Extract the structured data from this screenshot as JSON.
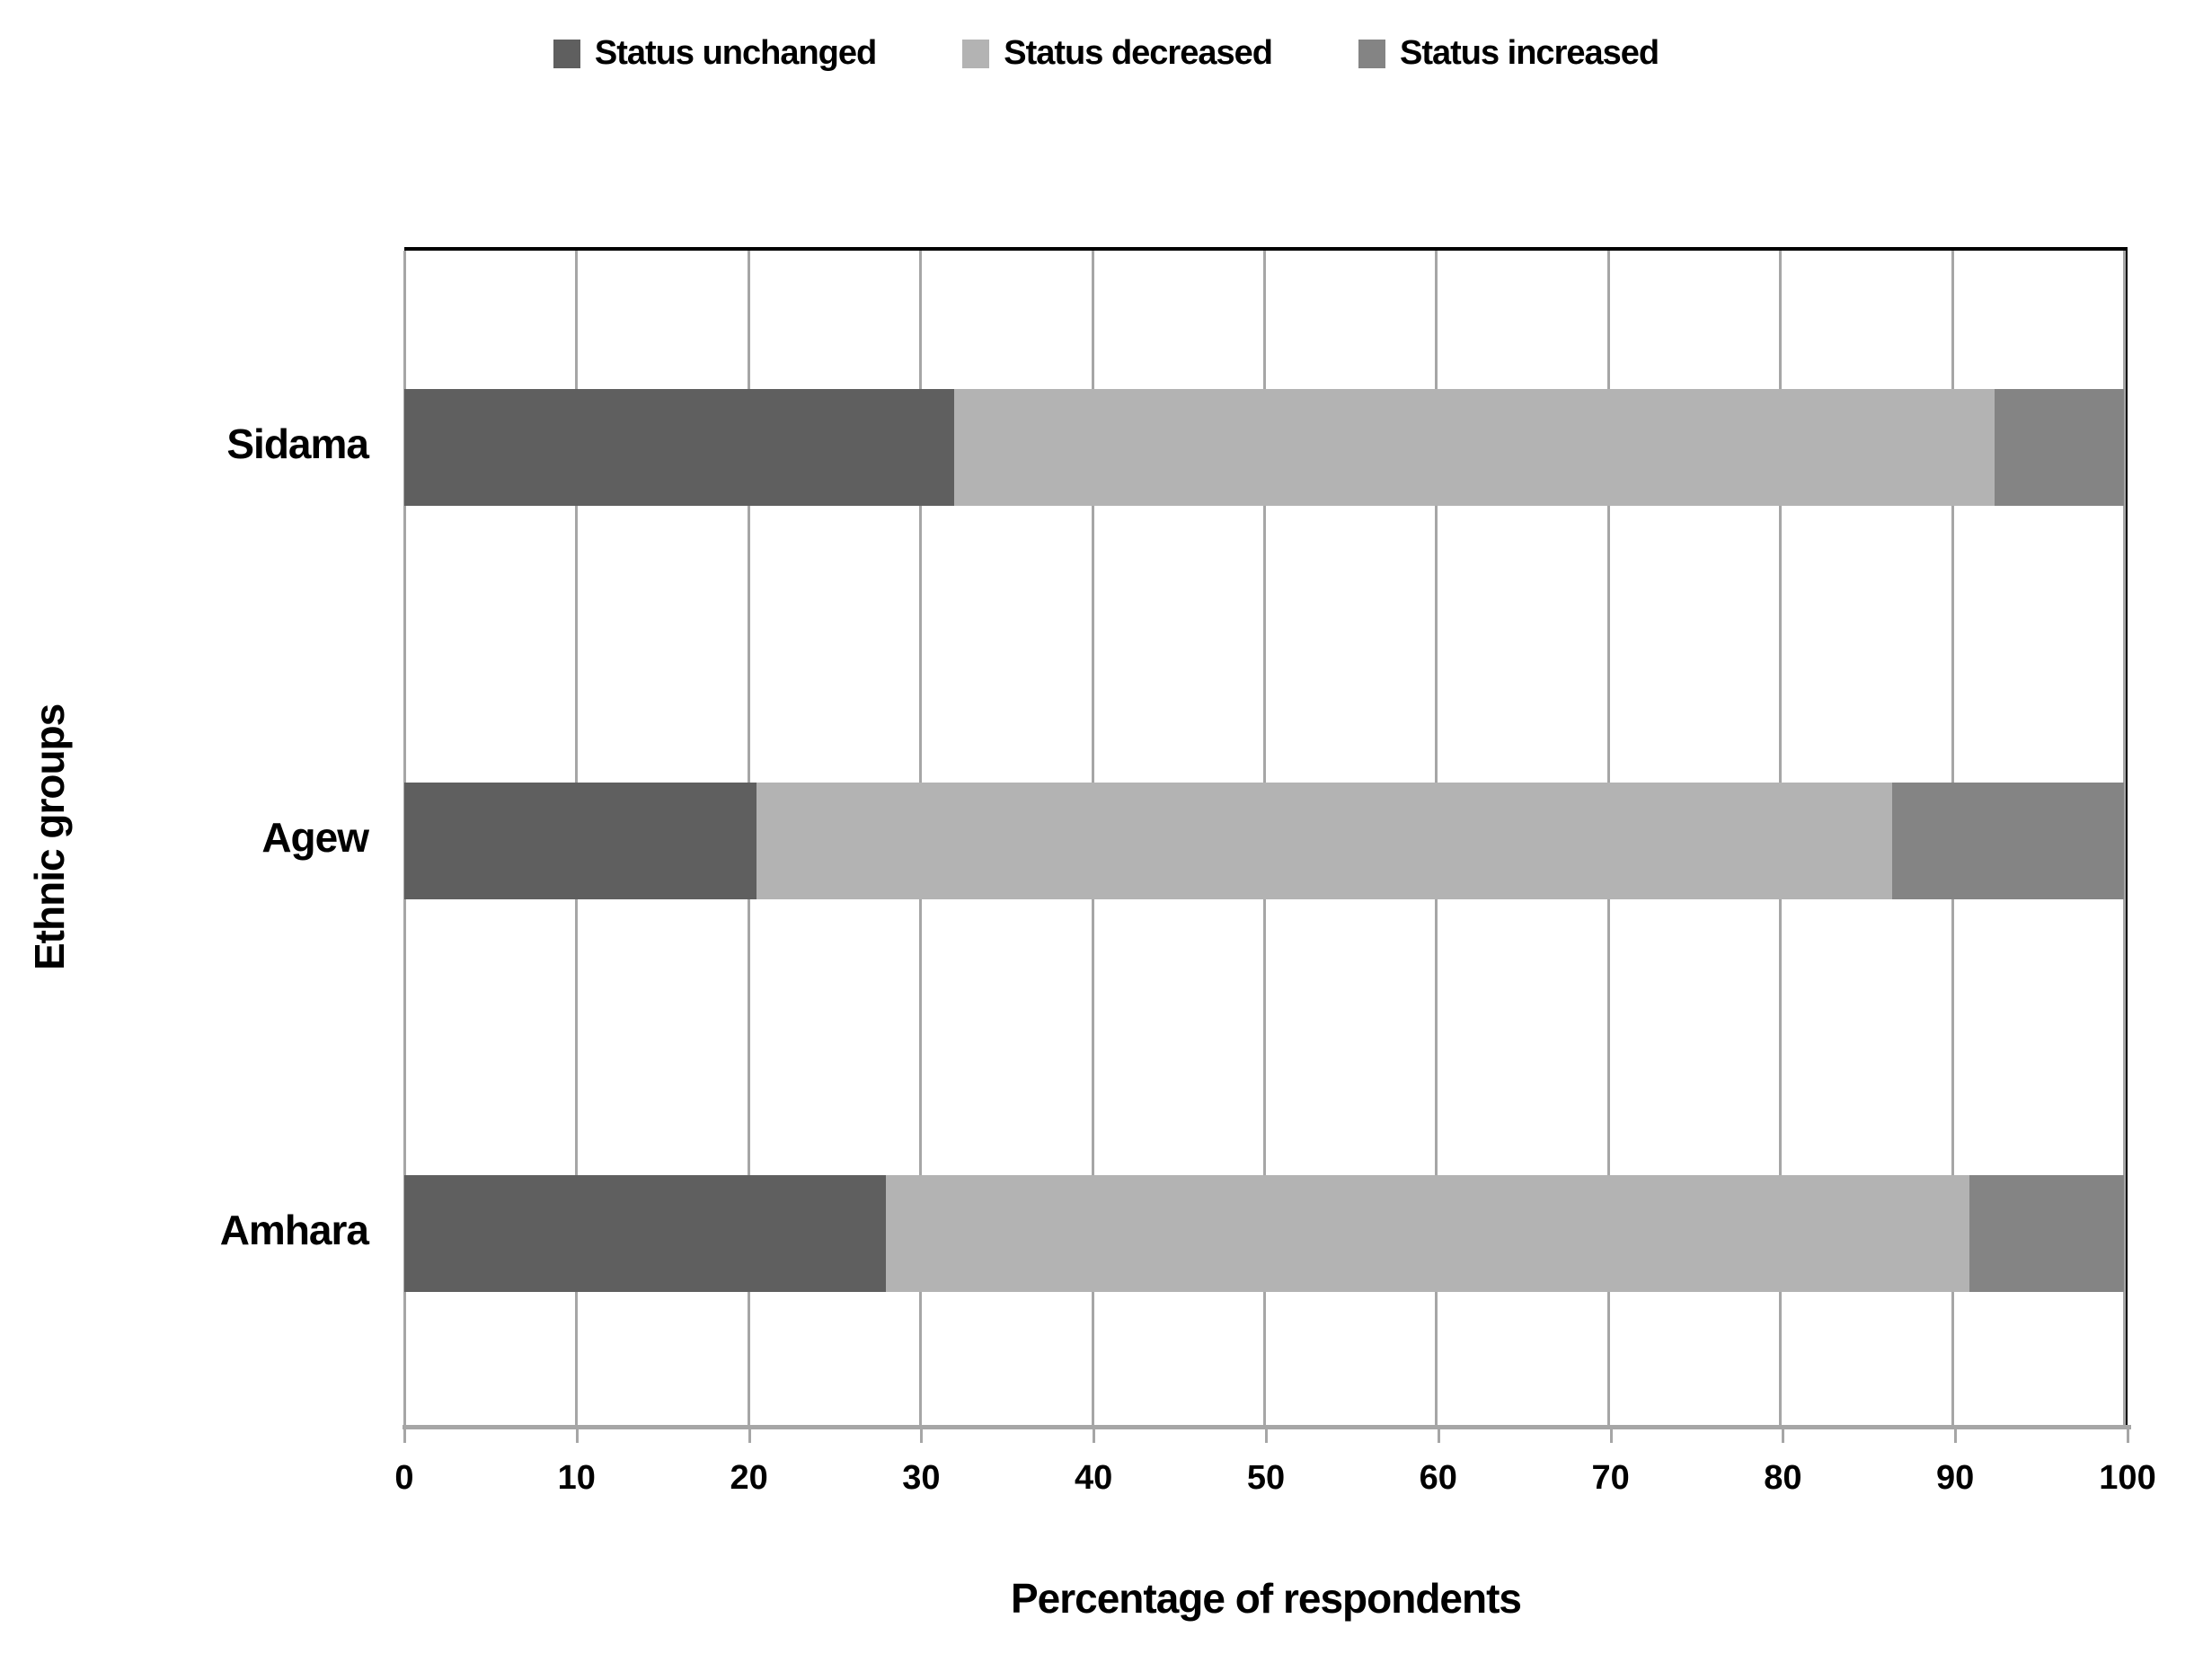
{
  "chart_data": {
    "type": "bar",
    "orientation": "horizontal",
    "stacked": true,
    "categories_order": "top-to-bottom",
    "categories": [
      "Sidama",
      "Agew",
      "Amhara"
    ],
    "series": [
      {
        "name": "Status unchanged",
        "color": "#5f5f5f",
        "values": [
          32,
          20.5,
          28
        ]
      },
      {
        "name": "Status decreased",
        "color": "#b3b3b3",
        "values": [
          60.5,
          66,
          63
        ]
      },
      {
        "name": "Status increased",
        "color": "#848484",
        "values": [
          7.5,
          13.5,
          9
        ]
      }
    ],
    "xlabel": "Percentage of respondents",
    "ylabel": "Ethnic groups",
    "xlim": [
      0,
      100
    ],
    "xticks": [
      0,
      10,
      20,
      30,
      40,
      50,
      60,
      70,
      80,
      90,
      100
    ],
    "grid": "vertical",
    "legend_position": "top",
    "gridline_color": "#a6a6a6",
    "plot_border_color": "#000000"
  }
}
